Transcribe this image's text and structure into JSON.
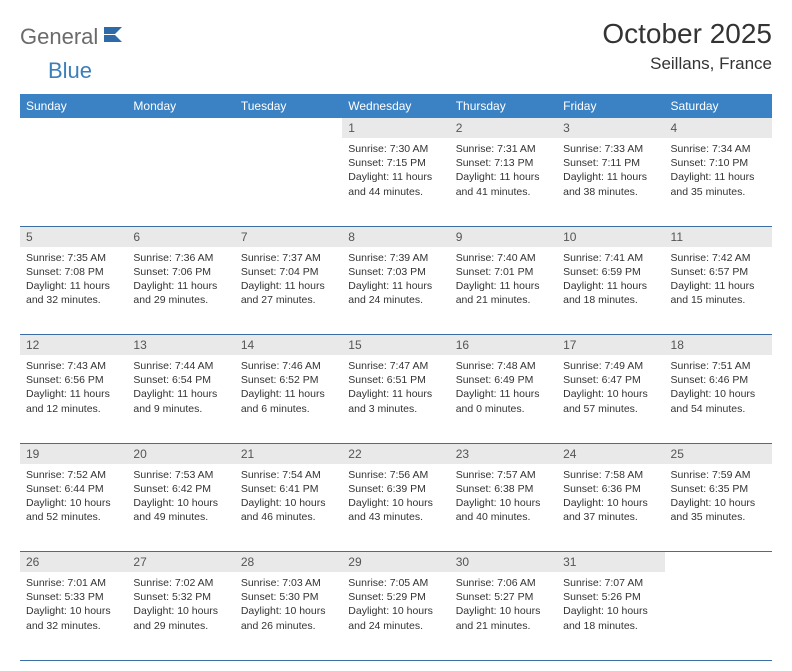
{
  "logo": {
    "text1": "General",
    "text2": "Blue"
  },
  "title": "October 2025",
  "location": "Seillans, France",
  "colors": {
    "header_bg": "#3b82c4",
    "header_text": "#ffffff",
    "daynum_bg": "#e9e9e9",
    "daynum_text": "#555555",
    "rule": "#3b6fa5",
    "logo_gray": "#6b6b6b",
    "logo_blue": "#3b7fbb"
  },
  "weekdays": [
    "Sunday",
    "Monday",
    "Tuesday",
    "Wednesday",
    "Thursday",
    "Friday",
    "Saturday"
  ],
  "weeks": [
    [
      {
        "n": "",
        "b": ""
      },
      {
        "n": "",
        "b": ""
      },
      {
        "n": "",
        "b": ""
      },
      {
        "n": "1",
        "b": "Sunrise: 7:30 AM\nSunset: 7:15 PM\nDaylight: 11 hours and 44 minutes."
      },
      {
        "n": "2",
        "b": "Sunrise: 7:31 AM\nSunset: 7:13 PM\nDaylight: 11 hours and 41 minutes."
      },
      {
        "n": "3",
        "b": "Sunrise: 7:33 AM\nSunset: 7:11 PM\nDaylight: 11 hours and 38 minutes."
      },
      {
        "n": "4",
        "b": "Sunrise: 7:34 AM\nSunset: 7:10 PM\nDaylight: 11 hours and 35 minutes."
      }
    ],
    [
      {
        "n": "5",
        "b": "Sunrise: 7:35 AM\nSunset: 7:08 PM\nDaylight: 11 hours and 32 minutes."
      },
      {
        "n": "6",
        "b": "Sunrise: 7:36 AM\nSunset: 7:06 PM\nDaylight: 11 hours and 29 minutes."
      },
      {
        "n": "7",
        "b": "Sunrise: 7:37 AM\nSunset: 7:04 PM\nDaylight: 11 hours and 27 minutes."
      },
      {
        "n": "8",
        "b": "Sunrise: 7:39 AM\nSunset: 7:03 PM\nDaylight: 11 hours and 24 minutes."
      },
      {
        "n": "9",
        "b": "Sunrise: 7:40 AM\nSunset: 7:01 PM\nDaylight: 11 hours and 21 minutes."
      },
      {
        "n": "10",
        "b": "Sunrise: 7:41 AM\nSunset: 6:59 PM\nDaylight: 11 hours and 18 minutes."
      },
      {
        "n": "11",
        "b": "Sunrise: 7:42 AM\nSunset: 6:57 PM\nDaylight: 11 hours and 15 minutes."
      }
    ],
    [
      {
        "n": "12",
        "b": "Sunrise: 7:43 AM\nSunset: 6:56 PM\nDaylight: 11 hours and 12 minutes."
      },
      {
        "n": "13",
        "b": "Sunrise: 7:44 AM\nSunset: 6:54 PM\nDaylight: 11 hours and 9 minutes."
      },
      {
        "n": "14",
        "b": "Sunrise: 7:46 AM\nSunset: 6:52 PM\nDaylight: 11 hours and 6 minutes."
      },
      {
        "n": "15",
        "b": "Sunrise: 7:47 AM\nSunset: 6:51 PM\nDaylight: 11 hours and 3 minutes."
      },
      {
        "n": "16",
        "b": "Sunrise: 7:48 AM\nSunset: 6:49 PM\nDaylight: 11 hours and 0 minutes."
      },
      {
        "n": "17",
        "b": "Sunrise: 7:49 AM\nSunset: 6:47 PM\nDaylight: 10 hours and 57 minutes."
      },
      {
        "n": "18",
        "b": "Sunrise: 7:51 AM\nSunset: 6:46 PM\nDaylight: 10 hours and 54 minutes."
      }
    ],
    [
      {
        "n": "19",
        "b": "Sunrise: 7:52 AM\nSunset: 6:44 PM\nDaylight: 10 hours and 52 minutes."
      },
      {
        "n": "20",
        "b": "Sunrise: 7:53 AM\nSunset: 6:42 PM\nDaylight: 10 hours and 49 minutes."
      },
      {
        "n": "21",
        "b": "Sunrise: 7:54 AM\nSunset: 6:41 PM\nDaylight: 10 hours and 46 minutes."
      },
      {
        "n": "22",
        "b": "Sunrise: 7:56 AM\nSunset: 6:39 PM\nDaylight: 10 hours and 43 minutes."
      },
      {
        "n": "23",
        "b": "Sunrise: 7:57 AM\nSunset: 6:38 PM\nDaylight: 10 hours and 40 minutes."
      },
      {
        "n": "24",
        "b": "Sunrise: 7:58 AM\nSunset: 6:36 PM\nDaylight: 10 hours and 37 minutes."
      },
      {
        "n": "25",
        "b": "Sunrise: 7:59 AM\nSunset: 6:35 PM\nDaylight: 10 hours and 35 minutes."
      }
    ],
    [
      {
        "n": "26",
        "b": "Sunrise: 7:01 AM\nSunset: 5:33 PM\nDaylight: 10 hours and 32 minutes."
      },
      {
        "n": "27",
        "b": "Sunrise: 7:02 AM\nSunset: 5:32 PM\nDaylight: 10 hours and 29 minutes."
      },
      {
        "n": "28",
        "b": "Sunrise: 7:03 AM\nSunset: 5:30 PM\nDaylight: 10 hours and 26 minutes."
      },
      {
        "n": "29",
        "b": "Sunrise: 7:05 AM\nSunset: 5:29 PM\nDaylight: 10 hours and 24 minutes."
      },
      {
        "n": "30",
        "b": "Sunrise: 7:06 AM\nSunset: 5:27 PM\nDaylight: 10 hours and 21 minutes."
      },
      {
        "n": "31",
        "b": "Sunrise: 7:07 AM\nSunset: 5:26 PM\nDaylight: 10 hours and 18 minutes."
      },
      {
        "n": "",
        "b": ""
      }
    ]
  ]
}
